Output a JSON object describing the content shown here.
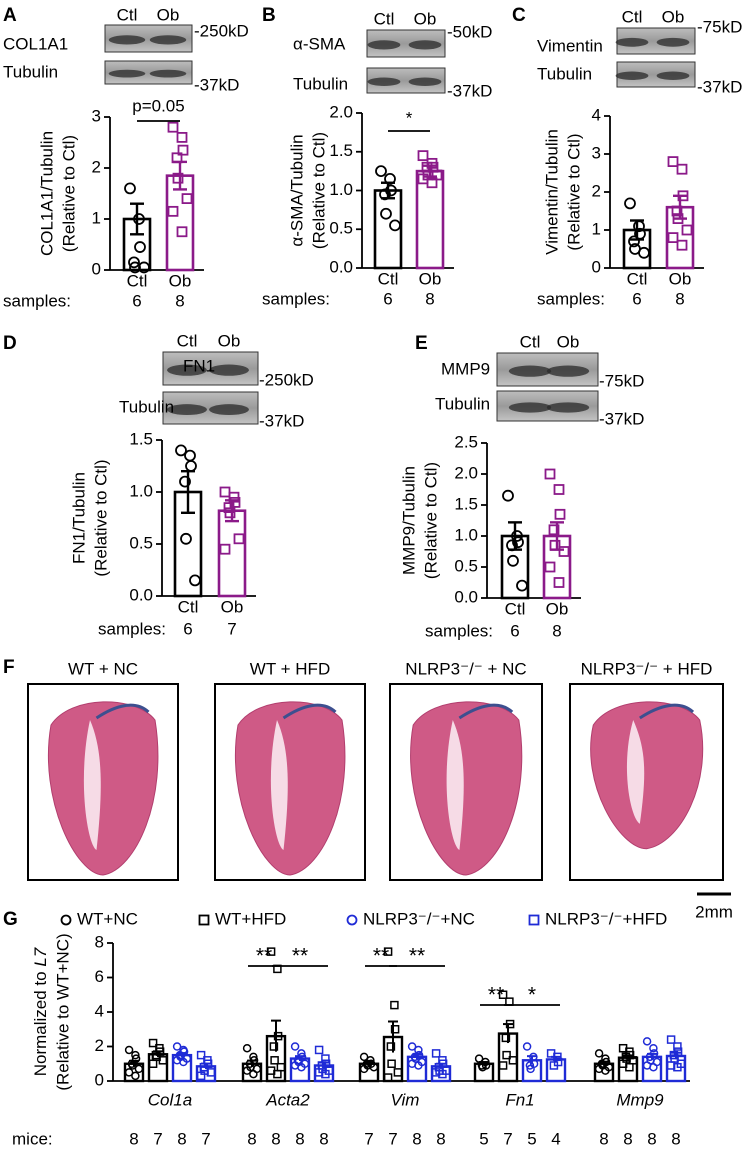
{
  "chart_data": [
    {
      "type": "bar",
      "panel": "A",
      "blot": {
        "lanes": [
          "Ctl",
          "Ob"
        ],
        "rows": [
          {
            "label": "COL1A1",
            "marker": "-250kD"
          },
          {
            "label": "Tubulin",
            "marker": "-37kD"
          }
        ]
      },
      "ylabel": [
        "COL1A1/Tubulin",
        "(Relative to Ctl)"
      ],
      "categories": [
        "Ctl",
        "Ob"
      ],
      "values": [
        1.0,
        1.85
      ],
      "errors": [
        0.3,
        0.27
      ],
      "points": [
        [
          1.6,
          1.0,
          0.45,
          0.15,
          0.05,
          0.05
        ],
        [
          2.8,
          2.6,
          2.35,
          2.2,
          1.8,
          1.4,
          1.15,
          0.75
        ]
      ],
      "colors": [
        "#000000",
        "#8b1a89"
      ],
      "markers": [
        "circle",
        "square"
      ],
      "ylim": [
        0,
        3
      ],
      "yticks": [
        0,
        1,
        2,
        3
      ],
      "annotation": "p=0.05",
      "samples_label": "samples:",
      "samples": [
        6,
        8
      ]
    },
    {
      "type": "bar",
      "panel": "B",
      "blot": {
        "lanes": [
          "Ctl",
          "Ob"
        ],
        "rows": [
          {
            "label": "α-SMA",
            "marker": "-50kD"
          },
          {
            "label": "Tubulin",
            "marker": "-37kD"
          }
        ]
      },
      "ylabel": [
        "α-SMA/Tubulin",
        "(Relative to Ctl)"
      ],
      "categories": [
        "Ctl",
        "Ob"
      ],
      "values": [
        1.0,
        1.25
      ],
      "errors": [
        0.1,
        0.07
      ],
      "points": [
        [
          1.25,
          1.15,
          1.0,
          0.95,
          0.7,
          0.55
        ],
        [
          1.45,
          1.35,
          1.3,
          1.3,
          1.2,
          1.2,
          1.15,
          1.1
        ]
      ],
      "colors": [
        "#000000",
        "#8b1a89"
      ],
      "markers": [
        "circle",
        "square"
      ],
      "ylim": [
        0,
        2
      ],
      "yticks": [
        {
          "value": 0,
          "label": "0.0"
        },
        0.5,
        {
          "value": 1,
          "label": "1.0"
        },
        1.5,
        {
          "value": 2,
          "label": "2.0"
        }
      ],
      "annotation": "*",
      "samples_label": "samples:",
      "samples": [
        6,
        8
      ]
    },
    {
      "type": "bar",
      "panel": "C",
      "blot": {
        "lanes": [
          "Ctl",
          "Ob"
        ],
        "rows": [
          {
            "label": "Vimentin",
            "marker": "-75kD"
          },
          {
            "label": "Tubulin",
            "marker": "-37kD"
          }
        ]
      },
      "ylabel": [
        "Vimentin/Tubulin",
        "(Relative to Ctl)"
      ],
      "categories": [
        "Ctl",
        "Ob"
      ],
      "values": [
        1.0,
        1.6
      ],
      "errors": [
        0.25,
        0.3
      ],
      "points": [
        [
          1.7,
          1.1,
          0.9,
          0.7,
          0.5,
          0.4
        ],
        [
          2.8,
          2.6,
          1.9,
          1.5,
          1.3,
          1.0,
          0.8,
          0.6
        ]
      ],
      "colors": [
        "#000000",
        "#8b1a89"
      ],
      "markers": [
        "circle",
        "square"
      ],
      "ylim": [
        0,
        4
      ],
      "yticks": [
        0,
        1,
        2,
        3,
        4
      ],
      "samples_label": "samples:",
      "samples": [
        6,
        8
      ]
    },
    {
      "type": "bar",
      "panel": "D",
      "blot": {
        "lanes": [
          "Ctl",
          "Ob"
        ],
        "rows": [
          {
            "label": "FN1",
            "marker": "-250kD"
          },
          {
            "label": "Tubulin",
            "marker": "-37kD"
          }
        ]
      },
      "ylabel": [
        "FN1/Tubulin",
        "(Relative to Ctl)"
      ],
      "categories": [
        "Ctl",
        "Ob"
      ],
      "values": [
        1.0,
        0.82
      ],
      "errors": [
        0.2,
        0.1
      ],
      "points": [
        [
          1.4,
          1.35,
          1.25,
          1.1,
          0.55,
          0.15
        ],
        [
          1.0,
          0.95,
          0.9,
          0.85,
          0.8,
          0.55,
          0.45
        ]
      ],
      "colors": [
        "#000000",
        "#8b1a89"
      ],
      "markers": [
        "circle",
        "square"
      ],
      "ylim": [
        0,
        1.5
      ],
      "yticks": [
        {
          "value": 0,
          "label": "0.0"
        },
        0.5,
        {
          "value": 1,
          "label": "1.0"
        },
        1.5
      ],
      "samples_label": "samples:",
      "samples": [
        6,
        7
      ]
    },
    {
      "type": "bar",
      "panel": "E",
      "blot": {
        "lanes": [
          "Ctl",
          "Ob"
        ],
        "rows": [
          {
            "label": "MMP9",
            "marker": "-75kD"
          },
          {
            "label": "Tubulin",
            "marker": "-37kD"
          }
        ]
      },
      "ylabel": [
        "MMP9/Tubulin",
        "(Relative to Ctl)"
      ],
      "categories": [
        "Ctl",
        "Ob"
      ],
      "values": [
        1.0,
        1.0
      ],
      "errors": [
        0.22,
        0.22
      ],
      "points": [
        [
          1.65,
          1.0,
          0.9,
          0.85,
          0.6,
          0.2
        ],
        [
          2.0,
          1.75,
          1.35,
          1.1,
          0.85,
          0.75,
          0.5,
          0.25
        ]
      ],
      "colors": [
        "#000000",
        "#8b1a89"
      ],
      "markers": [
        "circle",
        "square"
      ],
      "ylim": [
        0,
        2.5
      ],
      "yticks": [
        {
          "value": 0,
          "label": "0.0"
        },
        0.5,
        {
          "value": 1,
          "label": "1.0"
        },
        1.5,
        {
          "value": 2,
          "label": "2.0"
        },
        2.5
      ],
      "samples_label": "samples:",
      "samples": [
        6,
        8
      ]
    },
    {
      "type": "grouped_bar",
      "panel": "G",
      "ylabel": [
        "Normalized to ",
        "L7",
        "(Relative to WT+NC)"
      ],
      "categories": [
        "Col1a",
        "Acta2",
        "Vim",
        "Fn1",
        "Mmp9"
      ],
      "ylim": [
        0,
        8
      ],
      "yticks": [
        0,
        2,
        4,
        6,
        8
      ],
      "significance": [
        "**",
        "**",
        "**",
        "**",
        "**",
        "*"
      ],
      "n_label": "mice:",
      "series": [
        {
          "name": "WT+NC",
          "color": "#000000",
          "marker": "circle",
          "values": [
            1.0,
            1.0,
            1.0,
            1.0,
            1.0
          ],
          "errors": [
            0.17,
            0.18,
            0.1,
            0.1,
            0.12
          ],
          "n": [
            8,
            8,
            7,
            5,
            8
          ],
          "points": [
            [
              1.8,
              1.5,
              1.3,
              1.0,
              0.9,
              0.7,
              0.5,
              0.3
            ],
            [
              1.9,
              1.4,
              1.2,
              1.0,
              0.8,
              0.7,
              0.6,
              0.4
            ],
            [
              1.4,
              1.2,
              1.0,
              1.0,
              0.9,
              0.8,
              0.7
            ],
            [
              1.3,
              1.1,
              0.9,
              0.9,
              0.8
            ],
            [
              1.6,
              1.3,
              1.1,
              1.0,
              0.9,
              0.8,
              0.7,
              0.6
            ]
          ]
        },
        {
          "name": "WT+HFD",
          "color": "#000000",
          "marker": "square",
          "values": [
            1.55,
            2.6,
            2.55,
            2.75,
            1.35
          ],
          "errors": [
            0.17,
            0.9,
            0.9,
            0.55,
            0.12
          ],
          "n": [
            7,
            8,
            7,
            7,
            8
          ],
          "points": [
            [
              2.2,
              1.9,
              1.7,
              1.5,
              1.4,
              1.2,
              1.0
            ],
            [
              7.5,
              6.5,
              2.6,
              2.0,
              1.2,
              0.8,
              0.6,
              0.4
            ],
            [
              7.5,
              4.4,
              3.0,
              2.0,
              1.0,
              0.5,
              0.2
            ],
            [
              5.0,
              4.6,
              3.3,
              2.5,
              1.5,
              1.2,
              0.9
            ],
            [
              1.9,
              1.7,
              1.5,
              1.4,
              1.3,
              1.2,
              1.0,
              0.8
            ]
          ]
        },
        {
          "name": "NLRP3⁻/⁻+NC",
          "color": "#1f2bd6",
          "marker": "circle",
          "values": [
            1.5,
            1.3,
            1.4,
            1.2,
            1.4
          ],
          "errors": [
            0.12,
            0.14,
            0.14,
            0.24,
            0.17
          ],
          "n": [
            8,
            8,
            8,
            5,
            8
          ],
          "points": [
            [
              2.0,
              1.8,
              1.7,
              1.5,
              1.4,
              1.3,
              1.2,
              1.1
            ],
            [
              2.0,
              1.6,
              1.4,
              1.2,
              1.1,
              1.0,
              0.9,
              0.8
            ],
            [
              2.0,
              1.8,
              1.5,
              1.4,
              1.3,
              1.1,
              1.0,
              0.9
            ],
            [
              2.0,
              1.4,
              1.0,
              0.9,
              0.7
            ],
            [
              2.3,
              1.9,
              1.6,
              1.4,
              1.2,
              1.1,
              0.9,
              0.8
            ]
          ]
        },
        {
          "name": "NLRP3⁻/⁻+HFD",
          "color": "#1f2bd6",
          "marker": "square",
          "values": [
            0.85,
            0.9,
            0.85,
            1.25,
            1.45
          ],
          "errors": [
            0.16,
            0.17,
            0.15,
            0.15,
            0.19
          ],
          "n": [
            7,
            8,
            8,
            4,
            8
          ],
          "points": [
            [
              1.5,
              1.2,
              1.0,
              0.8,
              0.6,
              0.5,
              0.3
            ],
            [
              1.8,
              1.3,
              1.0,
              0.9,
              0.7,
              0.6,
              0.5,
              0.4
            ],
            [
              1.6,
              1.2,
              1.0,
              0.8,
              0.6,
              0.6,
              0.5,
              0.4
            ],
            [
              1.6,
              1.4,
              1.1,
              0.9
            ],
            [
              2.4,
              2.0,
              1.7,
              1.5,
              1.3,
              1.0,
              0.9,
              0.8
            ]
          ]
        }
      ]
    }
  ],
  "panel_f": {
    "label": "F",
    "titles": [
      "WT + NC",
      "WT + HFD",
      "NLRP3⁻/⁻ + NC",
      "NLRP3⁻/⁻ + HFD"
    ],
    "scale_bar": "2mm"
  }
}
